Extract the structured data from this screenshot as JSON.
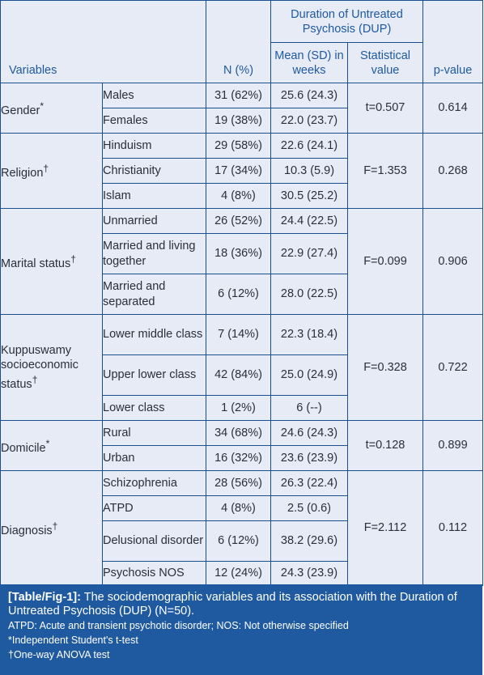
{
  "header": {
    "variables": "Variables",
    "n": "N (%)",
    "dup_group": "Duration of Untreated Psychosis (DUP)",
    "mean": "Mean (SD) in weeks",
    "stat": "Statistical value",
    "pvalue": "p-value"
  },
  "groups": [
    {
      "label": "Gender",
      "mark": "*",
      "stat": "t=0.507",
      "p": "0.614",
      "rows": [
        {
          "sub": "Males",
          "n": "31 (62%)",
          "mean": "25.6 (24.3)"
        },
        {
          "sub": "Females",
          "n": "19 (38%)",
          "mean": "22.0 (23.7)"
        }
      ]
    },
    {
      "label": "Religion",
      "mark": "†",
      "stat": "F=1.353",
      "p": "0.268",
      "rows": [
        {
          "sub": "Hinduism",
          "n": "29 (58%)",
          "mean": "22.6 (24.1)"
        },
        {
          "sub": "Christianity",
          "n": "17 (34%)",
          "mean": "10.3 (5.9)"
        },
        {
          "sub": "Islam",
          "n": "4 (8%)",
          "mean": "30.5 (25.2)"
        }
      ]
    },
    {
      "label": "Marital status",
      "mark": "†",
      "stat": "F=0.099",
      "p": "0.906",
      "rows": [
        {
          "sub": "Unmarried",
          "n": "26 (52%)",
          "mean": "24.4 (22.5)"
        },
        {
          "sub": "Married and living together",
          "n": "18 (36%)",
          "mean": "22.9 (27.4)"
        },
        {
          "sub": "Married and separated",
          "n": "6 (12%)",
          "mean": "28.0 (22.5)"
        }
      ]
    },
    {
      "label": "Kuppuswamy socioeconomic status",
      "mark": "†",
      "stat": "F=0.328",
      "p": "0.722",
      "rows": [
        {
          "sub": "Lower middle class",
          "n": "7 (14%)",
          "mean": "22.3 (18.4)"
        },
        {
          "sub": "Upper lower class",
          "n": "42 (84%)",
          "mean": "25.0 (24.9)"
        },
        {
          "sub": "Lower class",
          "n": "1 (2%)",
          "mean": "6 (--)"
        }
      ]
    },
    {
      "label": "Domicile",
      "mark": "*",
      "stat": "t=0.128",
      "p": "0.899",
      "rows": [
        {
          "sub": "Rural",
          "n": "34 (68%)",
          "mean": "24.6 (24.3)"
        },
        {
          "sub": "Urban",
          "n": "16 (32%)",
          "mean": "23.6 (23.9)"
        }
      ]
    },
    {
      "label": "Diagnosis",
      "mark": "†",
      "stat": "F=2.112",
      "p": "0.112",
      "rows": [
        {
          "sub": "Schizophrenia",
          "n": "28 (56%)",
          "mean": "26.3 (22.4)"
        },
        {
          "sub": "ATPD",
          "n": "4 (8%)",
          "mean": "2.5 (0.6)"
        },
        {
          "sub": "Delusional disorder",
          "n": "6 (12%)",
          "mean": "38.2 (29.6)"
        },
        {
          "sub": "Psychosis NOS",
          "n": "12 (24%)",
          "mean": "24.3 (23.9)"
        }
      ]
    }
  ],
  "caption": {
    "tag": "[Table/Fig-1]:",
    "text": " The sociodemographic variables and its association with the Duration of Untreated Psychosis (DUP) (N=50).",
    "abbrev": "ATPD: Acute and transient psychotic disorder; NOS: Not otherwise specified",
    "note1": "*Independent Student's t-test",
    "note2": "†One-way ANOVA test"
  }
}
